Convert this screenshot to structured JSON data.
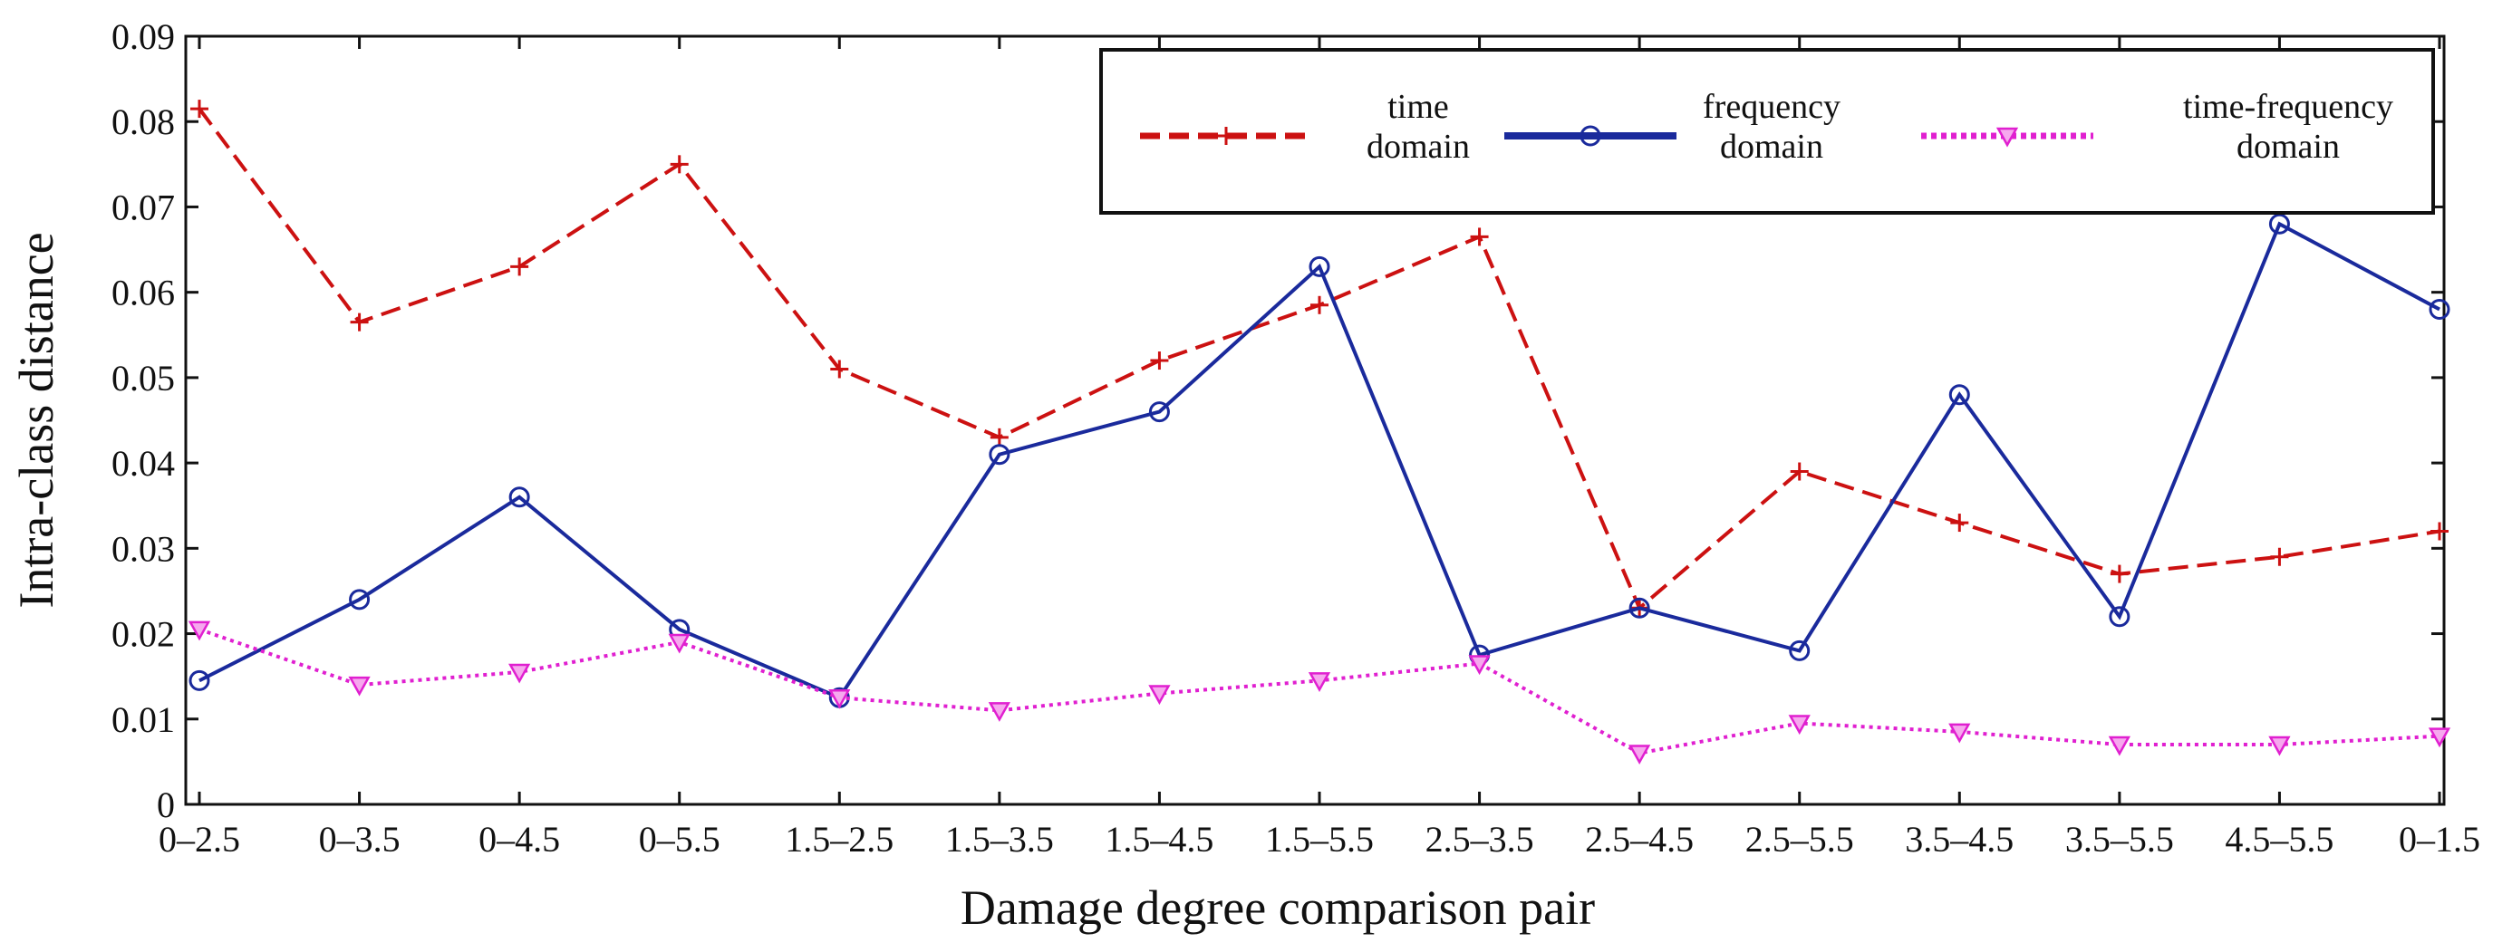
{
  "chart_data": {
    "type": "line",
    "title": "",
    "xlabel": "Damage degree comparison pair",
    "ylabel": "Intra-class distance",
    "categories": [
      "0–2.5",
      "0–3.5",
      "0–4.5",
      "0–5.5",
      "1.5–2.5",
      "1.5–3.5",
      "1.5–4.5",
      "1.5–5.5",
      "2.5–3.5",
      "2.5–4.5",
      "2.5–5.5",
      "3.5–4.5",
      "3.5–5.5",
      "4.5–5.5",
      "0–1.5"
    ],
    "ylim": [
      0,
      0.09
    ],
    "yticks": [
      "0",
      "0.01",
      "0.02",
      "0.03",
      "0.04",
      "0.05",
      "0.06",
      "0.07",
      "0.08",
      "0.09"
    ],
    "grid": false,
    "legend_position": "top-right",
    "series": [
      {
        "name": "time domain",
        "legend_lines": [
          "time",
          "domain"
        ],
        "color": "#cc1111",
        "line_style": "dashed",
        "marker": "plus",
        "values": [
          0.0815,
          0.0565,
          0.063,
          0.075,
          0.051,
          0.043,
          0.052,
          0.0585,
          0.0665,
          0.023,
          0.039,
          0.033,
          0.027,
          0.029,
          0.032
        ]
      },
      {
        "name": "frequency domain",
        "legend_lines": [
          "frequency",
          "domain"
        ],
        "color": "#1a2a9c",
        "line_style": "solid",
        "marker": "circle",
        "values": [
          0.0145,
          0.024,
          0.036,
          0.0205,
          0.0125,
          0.041,
          0.046,
          0.063,
          0.0175,
          0.023,
          0.018,
          0.048,
          0.022,
          0.068,
          0.058
        ]
      },
      {
        "name": "time-frequency domain",
        "legend_lines": [
          "time-frequency",
          "domain"
        ],
        "color": "#e020d0",
        "line_style": "dotted",
        "marker": "triangle-down",
        "values": [
          0.0205,
          0.014,
          0.0155,
          0.019,
          0.0125,
          0.011,
          0.013,
          0.0145,
          0.0165,
          0.006,
          0.0095,
          0.0085,
          0.007,
          0.007,
          0.008
        ]
      }
    ]
  }
}
